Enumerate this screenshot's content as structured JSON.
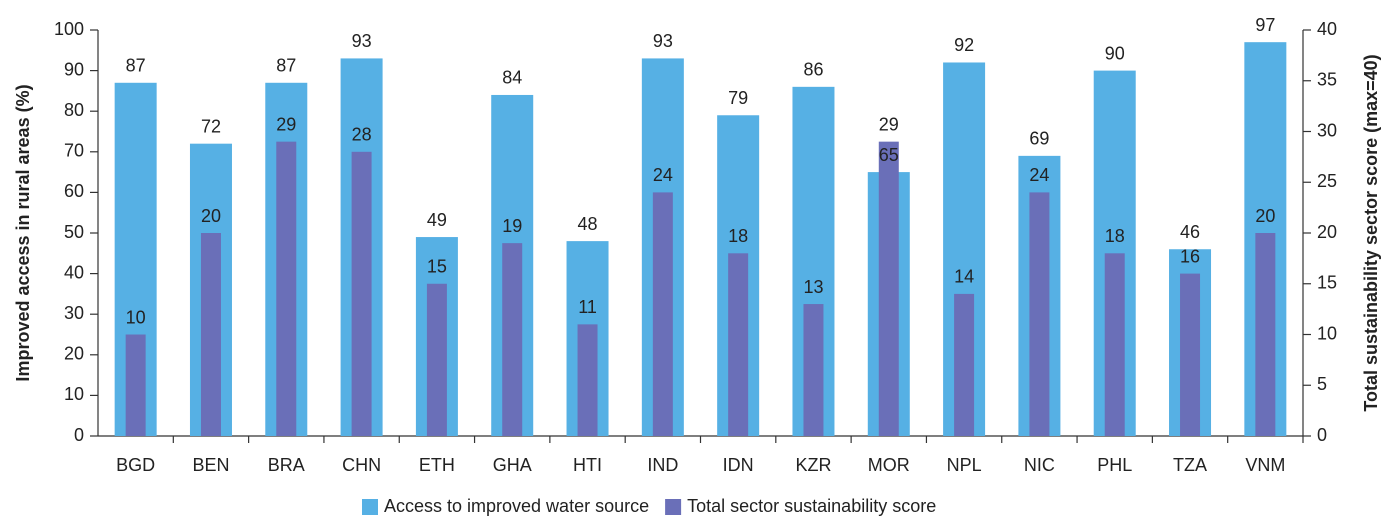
{
  "chart_data": {
    "type": "bar",
    "categories": [
      "BGD",
      "BEN",
      "BRA",
      "CHN",
      "ETH",
      "GHA",
      "HTI",
      "IND",
      "IDN",
      "KZR",
      "MOR",
      "NPL",
      "NIC",
      "PHL",
      "TZA",
      "VNM"
    ],
    "series": [
      {
        "name": "Access to improved water source",
        "color": "#56b0e4",
        "values": [
          87,
          72,
          87,
          93,
          49,
          84,
          48,
          93,
          79,
          86,
          65,
          92,
          69,
          90,
          46,
          97
        ]
      },
      {
        "name": "Total sector sustainability score",
        "color": "#6a6fb8",
        "axis": "y2",
        "values": [
          10,
          20,
          29,
          28,
          15,
          19,
          11,
          24,
          18,
          13,
          29,
          14,
          24,
          18,
          16,
          20
        ]
      }
    ],
    "y_label": "Improved access in rural areas (%)",
    "y2_label": "Total sustainability sector score (max=40)",
    "ylim": [
      0,
      100
    ],
    "yticks": [
      0,
      10,
      20,
      30,
      40,
      50,
      60,
      70,
      80,
      90,
      100
    ],
    "y2lim": [
      0,
      40
    ],
    "y2ticks": [
      0,
      5,
      10,
      15,
      20,
      25,
      30,
      35,
      40
    ],
    "legend": "bottom"
  }
}
